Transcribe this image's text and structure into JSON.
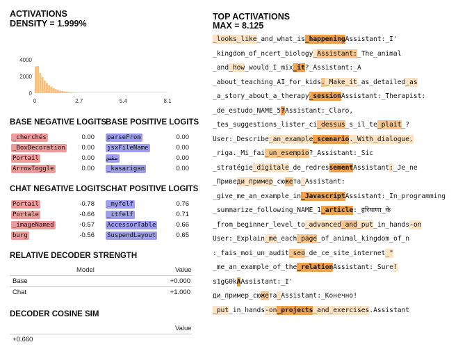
{
  "left": {
    "activations_title": "ACTIVATIONS",
    "density_label": "DENSITY = 1.999%",
    "histogram": {
      "y_ticks": [
        "4000",
        "2000",
        "0"
      ],
      "x_ticks": [
        "0",
        "2.7",
        "5.4",
        "8.1"
      ],
      "bar_color": "#f6c07a"
    },
    "base_neg_title": "BASE NEGATIVE LOGITS",
    "base_pos_title": "BASE POSITIVE LOGITS",
    "base_neg": [
      {
        "token": "_cherchés",
        "value": "0.00"
      },
      {
        "token": "_BoxDecoration",
        "value": "0.00"
      },
      {
        "token": "Portail",
        "value": "0.00"
      },
      {
        "token": "ArrowToggle",
        "value": "0.00"
      }
    ],
    "base_pos": [
      {
        "token": "parseFrom",
        "value": "0.00"
      },
      {
        "token": "jsxFileName",
        "value": "0.00"
      },
      {
        "token": "مقس",
        "value": "0.00"
      },
      {
        "token": "_kasarigan",
        "value": "0.00"
      }
    ],
    "chat_neg_title": "CHAT NEGATIVE LOGITS",
    "chat_pos_title": "CHAT POSITIVE LOGITS",
    "chat_neg": [
      {
        "token": "Portail",
        "value": "-0.78"
      },
      {
        "token": "Portale",
        "value": "-0.66"
      },
      {
        "token": "_imageNamed",
        "value": "-0.57"
      },
      {
        "token": "burg",
        "value": "-0.56"
      }
    ],
    "chat_pos": [
      {
        "token": "_myfelf",
        "value": "0.76"
      },
      {
        "token": "_itfelf",
        "value": "0.71"
      },
      {
        "token": "AccessorTable",
        "value": "0.66"
      },
      {
        "token": "SuspendLayout",
        "value": "0.65"
      }
    ],
    "rds_title": "RELATIVE DECODER STRENGTH",
    "rds_headers": {
      "model": "Model",
      "value": "Value"
    },
    "rds_rows": [
      {
        "model": "Base",
        "value": "+0.000"
      },
      {
        "model": "Chat",
        "value": "+1.000"
      }
    ],
    "cos_title": "DECODER COSINE SIM",
    "cos_header": "Value",
    "cos_value": "+0.660"
  },
  "right": {
    "top_title": "TOP ACTIVATIONS",
    "max_label": "MAX = 8.125",
    "colors": {
      "strong": "#f0a24a",
      "mid": "#f6c58c",
      "light": "#fbe3c4"
    },
    "lines": [
      [
        [
          "_looks",
          "l"
        ],
        [
          "_like",
          "l"
        ],
        [
          "_and_what_is",
          ""
        ],
        [
          "_happening",
          "s"
        ],
        [
          "Assistant:_I'",
          ""
        ]
      ],
      [
        [
          "_kingdom_of_ncert_biology",
          ""
        ],
        [
          "_",
          "l"
        ],
        [
          "Assistant",
          "m"
        ],
        [
          ":",
          "m"
        ],
        [
          "_The_animal",
          ""
        ]
      ],
      [
        [
          "_and",
          ""
        ],
        [
          "_how",
          "l"
        ],
        [
          "_would_I_mix",
          ""
        ],
        [
          "_it",
          "s"
        ],
        [
          "?_Assistant:_A",
          ""
        ]
      ],
      [
        [
          "_about_teaching_AI_for_kids",
          ""
        ],
        [
          ".",
          "m"
        ],
        [
          "_Make",
          "l"
        ],
        [
          "_it",
          "l"
        ],
        [
          "_as_detailed",
          ""
        ],
        [
          "_as",
          "l"
        ]
      ],
      [
        [
          "_a_story_about_a_therapy",
          ""
        ],
        [
          "_session",
          "s"
        ],
        [
          "Assistant:_Therapist:",
          ""
        ]
      ],
      [
        [
          "_de_estudo_NAME_5",
          ""
        ],
        [
          "?",
          "s"
        ],
        [
          "Assistant:_Claro,",
          ""
        ]
      ],
      [
        [
          "_tes_suggestions_lister_ci",
          ""
        ],
        [
          "_dessus",
          "m"
        ],
        [
          "_s_il_te",
          ""
        ],
        [
          "_plait",
          "m"
        ],
        [
          "_?",
          ""
        ]
      ],
      [
        [
          "User:_Describe",
          ""
        ],
        [
          "_an_example",
          "l"
        ],
        [
          "_scenario",
          "s"
        ],
        [
          ".",
          "l"
        ],
        [
          "_With_dialogue.",
          "l"
        ]
      ],
      [
        [
          "_riga._Mi_fai",
          ""
        ],
        [
          "_un_esempio",
          "m"
        ],
        [
          "?_Assistant:_Sic",
          ""
        ]
      ],
      [
        [
          "_stratégie",
          ""
        ],
        [
          "_digitale",
          "l"
        ],
        [
          "_de_redres",
          ""
        ],
        [
          "sement",
          "s"
        ],
        [
          "Assistant",
          ""
        ],
        [
          ":",
          "l"
        ],
        [
          "_Je_ne",
          ""
        ]
      ],
      [
        [
          "_Приве",
          ""
        ],
        [
          "ди_пример",
          "l"
        ],
        [
          "_сю",
          ""
        ],
        [
          "же",
          "m"
        ],
        [
          "та",
          ""
        ],
        [
          "_",
          "l"
        ],
        [
          "Assistant:",
          ""
        ]
      ],
      [
        [
          "_give_me_an_example_in",
          ""
        ],
        [
          "_Javascript",
          "s"
        ],
        [
          "Assistant:_In_programming",
          ""
        ]
      ],
      [
        [
          "_summarize_following_NAME_1",
          ""
        ],
        [
          "_article",
          "s"
        ],
        [
          ":_हरियाणा_के",
          ""
        ]
      ],
      [
        [
          "_from_beginner_level_to",
          ""
        ],
        [
          "_advanced",
          "l"
        ],
        [
          "_and",
          "m"
        ],
        [
          "_put",
          "l"
        ],
        [
          "_in_hands",
          ""
        ],
        [
          "-on",
          "l"
        ]
      ],
      [
        [
          "User:_Explain",
          ""
        ],
        [
          "_me",
          "l"
        ],
        [
          "_each",
          ""
        ],
        [
          "_page",
          "m"
        ],
        [
          "_of_animal_kingdom_of_n",
          ""
        ]
      ],
      [
        [
          ":_fais_moi_un_audit",
          ""
        ],
        [
          "_seo",
          "m"
        ],
        [
          "_de_ce_site_internet",
          ""
        ],
        [
          "_\"",
          "l"
        ]
      ],
      [
        [
          "_me_an_example_of_the",
          ""
        ],
        [
          "_relation",
          "s"
        ],
        [
          "Assistant:_Sure",
          ""
        ],
        [
          "!",
          "l"
        ]
      ],
      [
        [
          "s1gG0k",
          ""
        ],
        [
          "A",
          "s"
        ],
        [
          "Assistant:_I'",
          ""
        ]
      ],
      [
        [
          "ди_пример",
          ""
        ],
        [
          "_сю",
          ""
        ],
        [
          "же",
          "m"
        ],
        [
          "та",
          ""
        ],
        [
          "_",
          "l"
        ],
        [
          "Assistant:_Конечно",
          ""
        ],
        [
          "!",
          ""
        ]
      ],
      [
        [
          "_put",
          "l"
        ],
        [
          "_in_hands",
          ""
        ],
        [
          "-on",
          "l"
        ],
        [
          "_projects",
          "s"
        ],
        [
          "_and_exercises",
          "l"
        ],
        [
          ".",
          ""
        ],
        [
          "Assistant",
          ""
        ]
      ]
    ]
  }
}
